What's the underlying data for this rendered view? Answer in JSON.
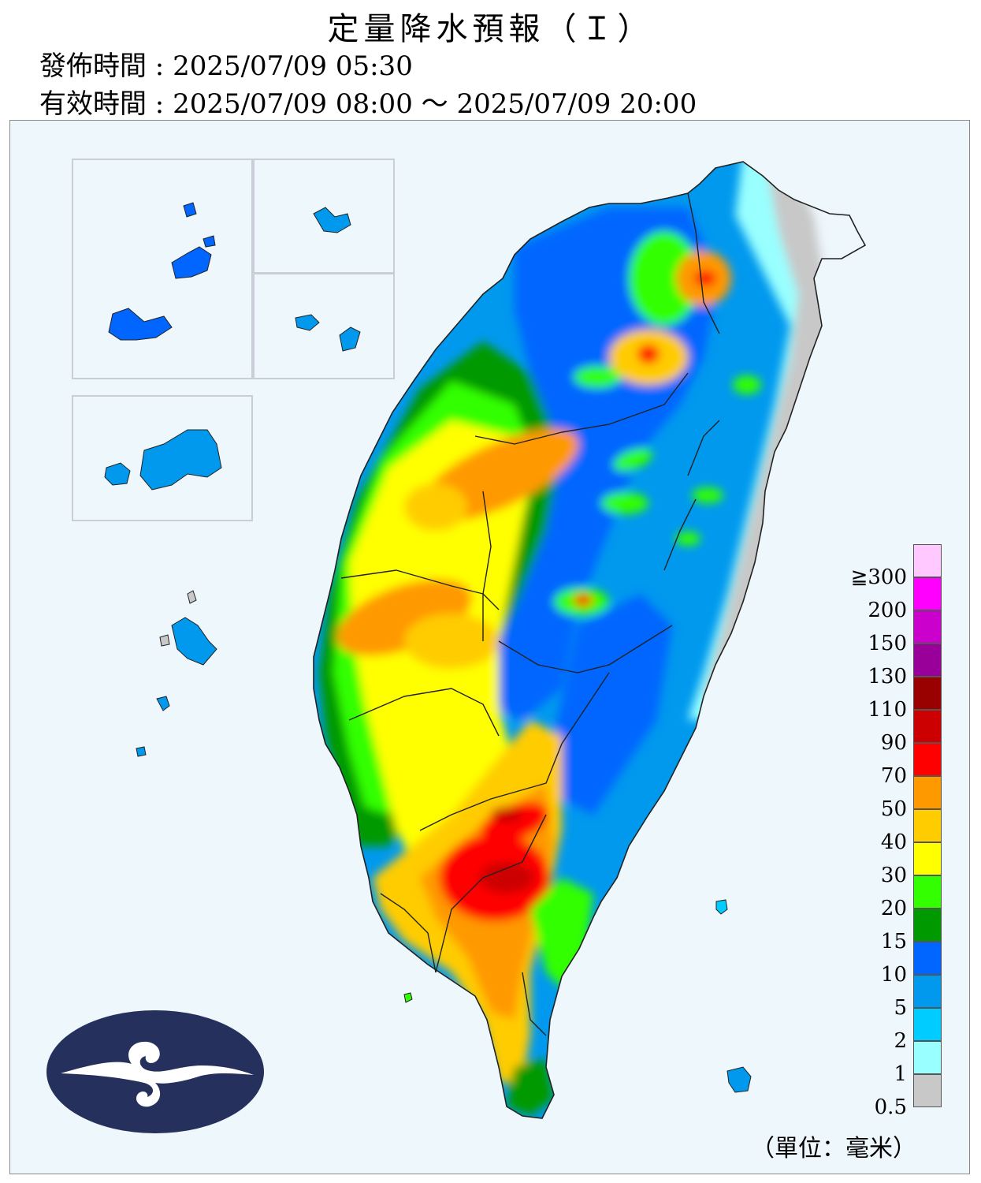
{
  "header": {
    "title": "定量降水預報（Ｉ）",
    "issued_label": "發佈時間 : 2025/07/09 05:30",
    "valid_label": "有效時間 : 2025/07/09 08:00 ～ 2025/07/09 20:00"
  },
  "legend": {
    "top_label": "≧300",
    "levels": [
      {
        "label": "200",
        "color": "#ffc8ff"
      },
      {
        "label": "150",
        "color": "#ff00ff"
      },
      {
        "label": "130",
        "color": "#cc00cc"
      },
      {
        "label": "110",
        "color": "#990099"
      },
      {
        "label": "90",
        "color": "#990000"
      },
      {
        "label": "70",
        "color": "#cc0000"
      },
      {
        "label": "50",
        "color": "#ff0000"
      },
      {
        "label": "40",
        "color": "#ff9900"
      },
      {
        "label": "30",
        "color": "#ffcc00"
      },
      {
        "label": "20",
        "color": "#ffff00"
      },
      {
        "label": "15",
        "color": "#33ff00"
      },
      {
        "label": "10",
        "color": "#009900"
      },
      {
        "label": "5",
        "color": "#0066ff"
      },
      {
        "label": "2",
        "color": "#0099ee"
      },
      {
        "label": "1",
        "color": "#00ccff"
      },
      {
        "label": "0.5",
        "color": "#99ffff"
      },
      {
        "label": "",
        "color": "#c8c8c8"
      }
    ],
    "unit_label": "（單位：毫米）"
  },
  "map_colors": {
    "background": "#eef7fc",
    "border": "#222222"
  },
  "logo": {
    "icon": "cwa-cloud-logo-icon",
    "color": "#25305c"
  }
}
